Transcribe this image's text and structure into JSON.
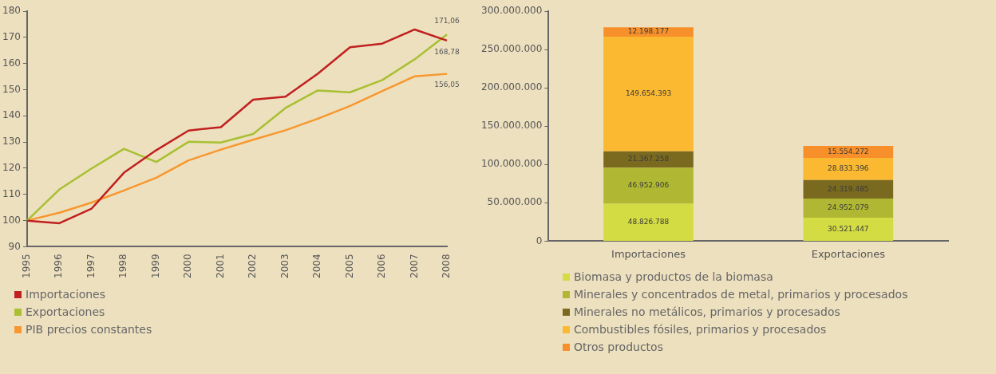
{
  "chart_data": [
    {
      "type": "line",
      "categories": [
        "1995",
        "1996",
        "1997",
        "1998",
        "1999",
        "2000",
        "2001",
        "2002",
        "2003",
        "2004",
        "2005",
        "2006",
        "2007",
        "2008"
      ],
      "series": [
        {
          "name": "Importaciones",
          "color": "#c0201f",
          "values": [
            100,
            99.0,
            104.6,
            118.3,
            126.9,
            134.4,
            135.7,
            146.2,
            147.3,
            156.1,
            166.2,
            167.6,
            173.0,
            168.78
          ],
          "value_labels": [
            null,
            null,
            null,
            null,
            null,
            null,
            null,
            null,
            null,
            null,
            null,
            null,
            null,
            "168,78"
          ]
        },
        {
          "name": "Exportaciones",
          "color": "#a8c032",
          "values": [
            100,
            111.9,
            119.9,
            127.4,
            122.4,
            130.1,
            129.8,
            133.1,
            143.0,
            149.7,
            149.0,
            153.7,
            161.6,
            171.06
          ],
          "value_labels": [
            null,
            null,
            null,
            null,
            null,
            null,
            null,
            null,
            null,
            null,
            null,
            null,
            null,
            "171,06"
          ]
        },
        {
          "name": "PIB precios constantes",
          "color": "#f7972f",
          "values": [
            100,
            103.0,
            106.9,
            111.5,
            116.4,
            123.0,
            127.1,
            130.9,
            134.5,
            138.9,
            143.8,
            149.5,
            155.1,
            156.05
          ],
          "value_labels": [
            null,
            null,
            null,
            null,
            null,
            null,
            null,
            null,
            null,
            null,
            null,
            null,
            null,
            "156,05"
          ]
        }
      ],
      "ylim": [
        90,
        180
      ],
      "yticks": [
        90,
        100,
        110,
        120,
        130,
        140,
        150,
        160,
        170,
        180
      ],
      "grid": false,
      "legend": "bottom",
      "marker": "none"
    },
    {
      "type": "bar",
      "stacked": true,
      "categories": [
        "Importaciones",
        "Exportaciones"
      ],
      "series": [
        {
          "name": "Biomasa y productos de la biomasa",
          "color": "#d4dc44",
          "values": [
            48826788,
            30521447
          ],
          "value_labels": [
            "48.826.788",
            "30.521.447"
          ]
        },
        {
          "name": "Minerales y concentrados de metal, primarios y procesados",
          "color": "#b0b833",
          "values": [
            46952906,
            24952079
          ],
          "value_labels": [
            "46.952.906",
            "24.952.079"
          ]
        },
        {
          "name": "Minerales no metálicos, primarios y procesados",
          "color": "#7a6a20",
          "values": [
            21367258,
            24319485
          ],
          "value_labels": [
            "21.367.258",
            "24.319.485"
          ]
        },
        {
          "name": "Combustibles fósiles, primarios y procesados",
          "color": "#fbb931",
          "values": [
            149654393,
            28833396
          ],
          "value_labels": [
            "149.654.393",
            "28.833.396"
          ]
        },
        {
          "name": "Otros productos",
          "color": "#f7902a",
          "values": [
            12198177,
            15554272
          ],
          "value_labels": [
            "12.198.177",
            "15.554.272"
          ]
        }
      ],
      "ylim": [
        0,
        300000000
      ],
      "yticks": [
        0,
        {
          "value": 50000000,
          "label": "50.000.000"
        },
        {
          "value": 100000000,
          "label": "100.000.000"
        },
        {
          "value": 150000000,
          "label": "150.000.000"
        },
        {
          "value": 200000000,
          "label": "200.000.000"
        },
        {
          "value": 250000000,
          "label": "250.000.000"
        },
        {
          "value": 300000000,
          "label": "300.000.000"
        }
      ],
      "grid": false,
      "legend": "bottom"
    }
  ]
}
